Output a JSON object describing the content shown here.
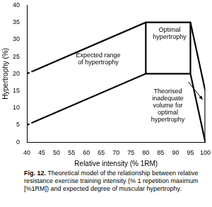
{
  "chart_data": {
    "type": "line",
    "caption_label": "Fig. 12.",
    "caption": "Theoretical model of the relationship between relative resistance exercise training intensity (% 1 repetition maximum [%1RM]) and expected degree of muscular hypertrophy.",
    "x_label": "Relative intensity (% 1RM)",
    "y_label": "Hypertrophy (%)",
    "xlim": [
      40,
      100
    ],
    "xticks": [
      40,
      45,
      50,
      55,
      60,
      65,
      70,
      75,
      80,
      85,
      90,
      95,
      100
    ],
    "ylim": [
      0,
      40
    ],
    "yticks": [
      0,
      5,
      10,
      15,
      20,
      25,
      30,
      35,
      40
    ],
    "grid": false,
    "series": [
      {
        "color": "#000000",
        "line_style": "dashed",
        "x": [
          40,
          42
        ],
        "values": [
          20,
          20.75
        ]
      },
      {
        "color": "#000000",
        "line_style": "solid",
        "x": [
          42,
          80,
          95,
          100,
          100
        ],
        "values": [
          20.75,
          35,
          35,
          15,
          0
        ]
      },
      {
        "color": "#000000",
        "line_style": "dashed",
        "x": [
          40,
          42
        ],
        "values": [
          5,
          5.75
        ]
      },
      {
        "color": "#000000",
        "line_style": "solid",
        "x": [
          42,
          80,
          95,
          100
        ],
        "values": [
          5.75,
          20,
          20,
          0
        ]
      },
      {
        "color": "#000000",
        "line_style": "solid",
        "x": [
          80,
          80
        ],
        "values": [
          20,
          35
        ]
      },
      {
        "color": "#000000",
        "line_style": "solid",
        "x": [
          95,
          95
        ],
        "values": [
          20,
          35
        ]
      }
    ],
    "annotations": [
      {
        "text": [
          "Expected range",
          "of hypertrophy"
        ]
      },
      {
        "text": [
          "Optimal",
          "hypertrophy"
        ]
      },
      {
        "text": [
          "Theorised",
          "inadequate",
          "volume for",
          "optimal",
          "hypertrophy"
        ]
      }
    ]
  }
}
